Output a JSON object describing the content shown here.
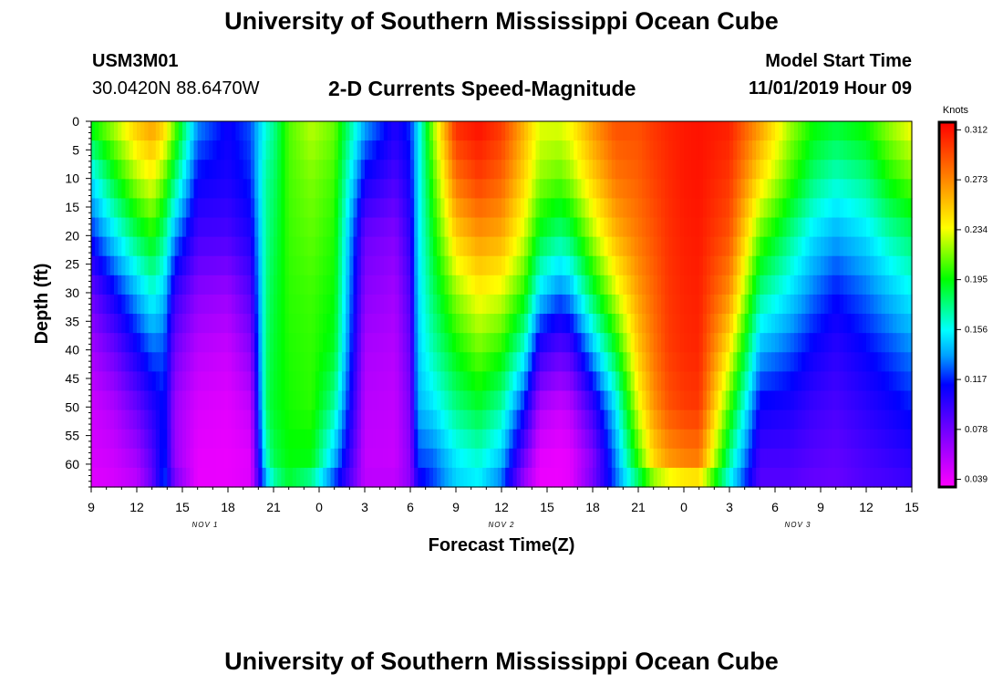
{
  "page": {
    "title_top": "University of Southern Mississippi Ocean Cube",
    "title_bottom": "University of Southern Mississippi Ocean Cube",
    "station_id": "USM3M01",
    "coordinates": "30.0420N 88.6470W",
    "plot_title": "2-D Currents Speed-Magnitude",
    "model_start_label": "Model Start Time",
    "model_start_value": "11/01/2019 Hour 09"
  },
  "chart_data": {
    "type": "heatmap",
    "title": "2-D Currents Speed-Magnitude",
    "xlabel": "Forecast Time(Z)",
    "ylabel": "Depth (ft)",
    "xlim": [
      0,
      54
    ],
    "ylim": [
      0,
      64
    ],
    "x_ticks": [
      0,
      3,
      6,
      9,
      12,
      15,
      18,
      21,
      24,
      27,
      30,
      33,
      36,
      39,
      42,
      45,
      48,
      51,
      54
    ],
    "x_tick_labels": [
      "9",
      "12",
      "15",
      "18",
      "21",
      "0",
      "3",
      "6",
      "9",
      "12",
      "15",
      "18",
      "21",
      "0",
      "3",
      "6",
      "9",
      "12",
      "15"
    ],
    "y_ticks": [
      0,
      5,
      10,
      15,
      20,
      25,
      30,
      35,
      40,
      45,
      50,
      55,
      60
    ],
    "y_tick_labels": [
      "0",
      "5",
      "10",
      "15",
      "20",
      "25",
      "30",
      "35",
      "40",
      "45",
      "50",
      "55",
      "60"
    ],
    "date_labels": [
      {
        "hour": 7.5,
        "text": "NOV 1"
      },
      {
        "hour": 27,
        "text": "NOV 2"
      },
      {
        "hour": 46.5,
        "text": "NOV 3"
      }
    ],
    "colorbar": {
      "label": "Knots",
      "min": 0.033,
      "max": 0.318,
      "ticks": [
        0.039,
        0.078,
        0.117,
        0.156,
        0.195,
        0.234,
        0.273,
        0.312
      ],
      "tick_labels": [
        "0.039",
        "0.078",
        "0.117",
        "0.156",
        "0.195",
        "0.234",
        "0.273",
        "0.312"
      ]
    },
    "grid": false,
    "speed_profiles_knots": {
      "depths_ft": [
        0,
        10,
        20,
        30,
        40,
        50,
        60,
        64
      ],
      "hours": [
        0,
        1.5,
        3,
        4,
        4.8,
        5.5,
        7,
        9,
        10.5,
        11.5,
        12,
        13,
        14.5,
        16,
        18,
        20,
        21,
        21.5,
        22.5,
        24,
        25.5,
        27,
        28.5,
        29.5,
        30.8,
        31.5,
        33,
        34.5,
        36,
        37,
        38,
        39,
        40,
        42,
        44,
        46,
        47.5,
        49,
        51,
        52.5,
        54
      ],
      "rows": [
        [
          0.2,
          0.15,
          0.116,
          0.08,
          0.06,
          0.048,
          0.045,
          0.042
        ],
        [
          0.225,
          0.19,
          0.15,
          0.11,
          0.08,
          0.058,
          0.048,
          0.045
        ],
        [
          0.255,
          0.222,
          0.182,
          0.14,
          0.108,
          0.08,
          0.06,
          0.052
        ],
        [
          0.268,
          0.235,
          0.198,
          0.16,
          0.126,
          0.1,
          0.085,
          0.08
        ],
        [
          0.252,
          0.212,
          0.175,
          0.145,
          0.124,
          0.115,
          0.12,
          0.125
        ],
        [
          0.215,
          0.178,
          0.135,
          0.098,
          0.078,
          0.064,
          0.066,
          0.08
        ],
        [
          0.135,
          0.112,
          0.092,
          0.07,
          0.055,
          0.045,
          0.04,
          0.04
        ],
        [
          0.11,
          0.105,
          0.09,
          0.065,
          0.05,
          0.042,
          0.039,
          0.04
        ],
        [
          0.125,
          0.118,
          0.105,
          0.088,
          0.07,
          0.052,
          0.042,
          0.045
        ],
        [
          0.16,
          0.172,
          0.172,
          0.175,
          0.178,
          0.18,
          0.16,
          0.13
        ],
        [
          0.172,
          0.178,
          0.182,
          0.186,
          0.188,
          0.19,
          0.182,
          0.16
        ],
        [
          0.208,
          0.206,
          0.204,
          0.202,
          0.2,
          0.198,
          0.194,
          0.185
        ],
        [
          0.225,
          0.215,
          0.21,
          0.205,
          0.203,
          0.202,
          0.192,
          0.16
        ],
        [
          0.212,
          0.205,
          0.2,
          0.196,
          0.19,
          0.17,
          0.138,
          0.115
        ],
        [
          0.14,
          0.11,
          0.08,
          0.07,
          0.06,
          0.055,
          0.052,
          0.055
        ],
        [
          0.105,
          0.09,
          0.072,
          0.062,
          0.056,
          0.052,
          0.05,
          0.055
        ],
        [
          0.12,
          0.11,
          0.1,
          0.09,
          0.082,
          0.075,
          0.07,
          0.07
        ],
        [
          0.15,
          0.15,
          0.15,
          0.148,
          0.145,
          0.14,
          0.12,
          0.1
        ],
        [
          0.22,
          0.205,
          0.192,
          0.18,
          0.168,
          0.15,
          0.125,
          0.12
        ],
        [
          0.305,
          0.28,
          0.25,
          0.218,
          0.195,
          0.175,
          0.15,
          0.145
        ],
        [
          0.314,
          0.298,
          0.268,
          0.238,
          0.212,
          0.188,
          0.16,
          0.15
        ],
        [
          0.3,
          0.285,
          0.262,
          0.23,
          0.2,
          0.17,
          0.14,
          0.125
        ],
        [
          0.26,
          0.248,
          0.228,
          0.2,
          0.16,
          0.115,
          0.075,
          0.06
        ],
        [
          0.232,
          0.218,
          0.19,
          0.15,
          0.1,
          0.06,
          0.04,
          0.039
        ],
        [
          0.232,
          0.21,
          0.175,
          0.13,
          0.085,
          0.05,
          0.038,
          0.039
        ],
        [
          0.238,
          0.218,
          0.182,
          0.138,
          0.09,
          0.055,
          0.04,
          0.042
        ],
        [
          0.268,
          0.25,
          0.222,
          0.185,
          0.14,
          0.095,
          0.07,
          0.08
        ],
        [
          0.292,
          0.278,
          0.258,
          0.228,
          0.19,
          0.15,
          0.13,
          0.125
        ],
        [
          0.292,
          0.286,
          0.278,
          0.266,
          0.252,
          0.232,
          0.2,
          0.168
        ],
        [
          0.3,
          0.296,
          0.29,
          0.284,
          0.278,
          0.268,
          0.245,
          0.2
        ],
        [
          0.306,
          0.304,
          0.302,
          0.3,
          0.298,
          0.29,
          0.265,
          0.212
        ],
        [
          0.31,
          0.31,
          0.308,
          0.306,
          0.304,
          0.298,
          0.272,
          0.22
        ],
        [
          0.312,
          0.312,
          0.31,
          0.308,
          0.306,
          0.3,
          0.275,
          0.222
        ],
        [
          0.308,
          0.3,
          0.29,
          0.27,
          0.24,
          0.205,
          0.17,
          0.15
        ],
        [
          0.268,
          0.245,
          0.21,
          0.175,
          0.14,
          0.11,
          0.09,
          0.085
        ],
        [
          0.222,
          0.205,
          0.175,
          0.15,
          0.125,
          0.105,
          0.09,
          0.085
        ],
        [
          0.198,
          0.178,
          0.15,
          0.13,
          0.11,
          0.095,
          0.085,
          0.08
        ],
        [
          0.19,
          0.165,
          0.138,
          0.115,
          0.1,
          0.09,
          0.082,
          0.08
        ],
        [
          0.2,
          0.175,
          0.15,
          0.128,
          0.112,
          0.1,
          0.09,
          0.088
        ],
        [
          0.22,
          0.198,
          0.168,
          0.142,
          0.122,
          0.108,
          0.095,
          0.09
        ],
        [
          0.238,
          0.212,
          0.18,
          0.155,
          0.132,
          0.116,
          0.1,
          0.095
        ]
      ]
    }
  }
}
